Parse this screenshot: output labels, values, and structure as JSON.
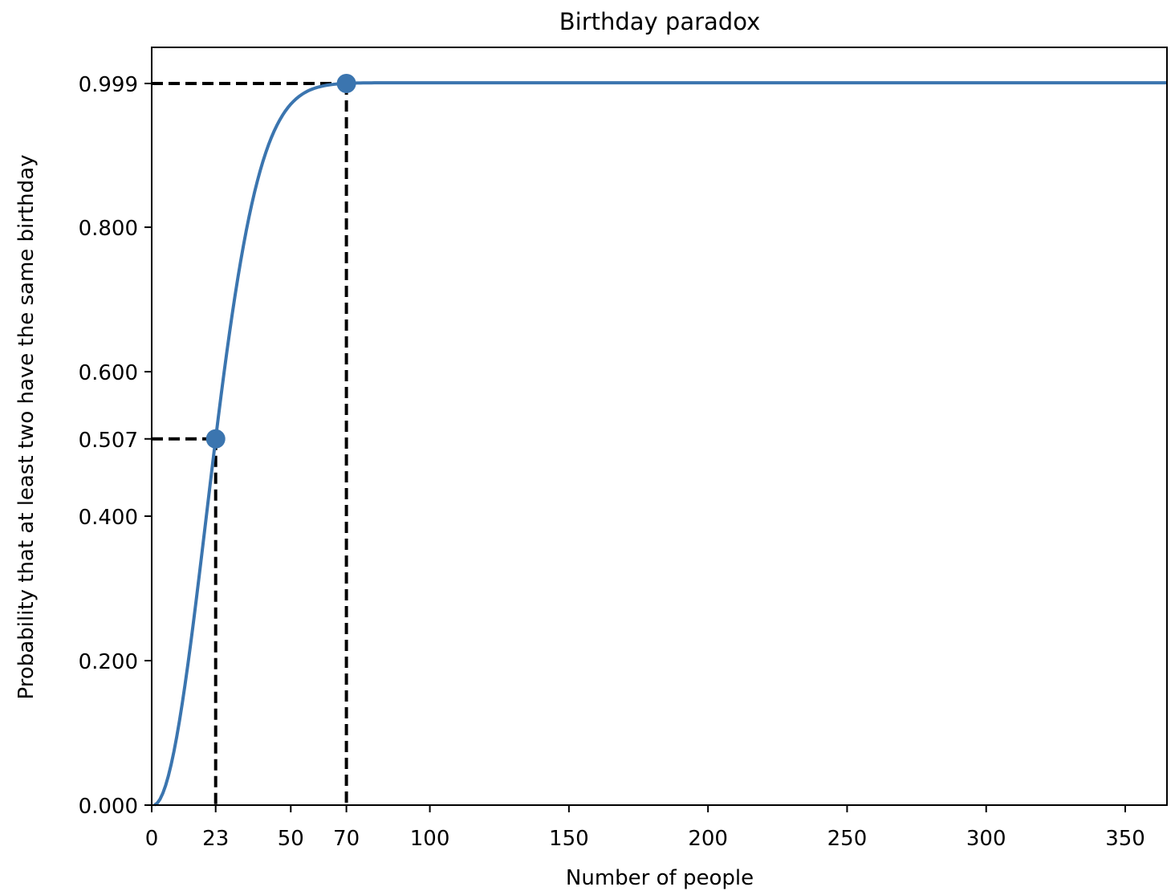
{
  "chart_data": {
    "type": "line",
    "title": "Birthday paradox",
    "xlabel": "Number of people",
    "ylabel": "Probability that at least two have the same birthday",
    "xlim": [
      0,
      365
    ],
    "ylim": [
      0,
      1.05
    ],
    "xticks": [
      0,
      23,
      50,
      70,
      100,
      150,
      200,
      250,
      300,
      350
    ],
    "xtick_labels": [
      "0",
      "23",
      "50",
      "70",
      "100",
      "150",
      "200",
      "250",
      "300",
      "350"
    ],
    "yticks": [
      0.0,
      0.2,
      0.4,
      0.507,
      0.6,
      0.8,
      0.999
    ],
    "ytick_labels": [
      "0.000",
      "0.200",
      "0.400",
      "0.507",
      "0.600",
      "0.800",
      "0.999"
    ],
    "grid": false,
    "series": [
      {
        "color": "#3b75af",
        "x": [
          1,
          5,
          10,
          15,
          20,
          23,
          25,
          30,
          35,
          40,
          45,
          50,
          55,
          60,
          65,
          70,
          75,
          80,
          90,
          100,
          150,
          200,
          250,
          300,
          365
        ],
        "values": [
          0.0,
          0.027,
          0.117,
          0.253,
          0.411,
          0.507,
          0.569,
          0.706,
          0.814,
          0.891,
          0.941,
          0.97,
          0.986,
          0.994,
          0.998,
          0.999,
          0.9997,
          0.9999,
          1.0,
          1.0,
          1.0,
          1.0,
          1.0,
          1.0,
          1.0
        ]
      }
    ],
    "highlighted_points": [
      {
        "x": 23,
        "y": 0.507
      },
      {
        "x": 70,
        "y": 0.999
      }
    ],
    "reference_line_color": "#000000"
  }
}
